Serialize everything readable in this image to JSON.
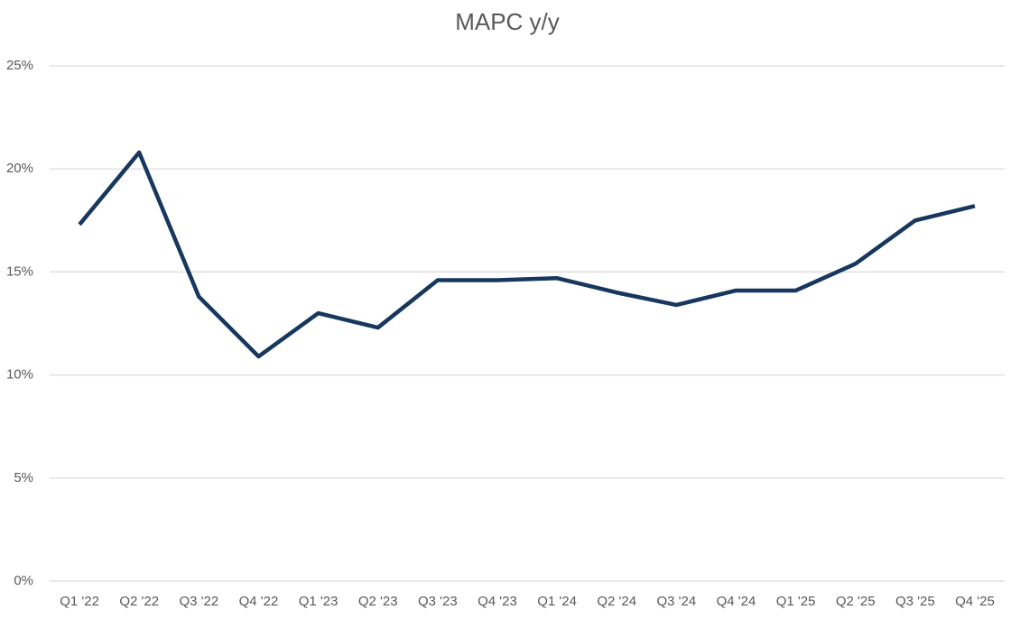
{
  "chart_data": {
    "type": "line",
    "title": "MAPC y/y",
    "categories": [
      "Q1 '22",
      "Q2 '22",
      "Q3 '22",
      "Q4 '22",
      "Q1 '23",
      "Q2 '23",
      "Q3 '23",
      "Q4 '23",
      "Q1 '24",
      "Q2 '24",
      "Q3 '24",
      "Q4 '24",
      "Q1 '25",
      "Q2 '25",
      "Q3 '25",
      "Q4 '25"
    ],
    "series": [
      {
        "name": "MAPC y/y",
        "color": "#17375e",
        "values": [
          17.3,
          20.8,
          13.8,
          10.9,
          13.0,
          12.3,
          14.6,
          14.6,
          14.7,
          14.0,
          13.4,
          14.1,
          14.1,
          15.4,
          17.5,
          18.2
        ]
      }
    ],
    "ylim": [
      0,
      25
    ],
    "yticks": [
      {
        "value": 0,
        "label": "0%"
      },
      {
        "value": 5,
        "label": "5%"
      },
      {
        "value": 10,
        "label": "10%"
      },
      {
        "value": 15,
        "label": "15%"
      },
      {
        "value": 20,
        "label": "20%"
      },
      {
        "value": 25,
        "label": "25%"
      }
    ],
    "grid": true
  }
}
